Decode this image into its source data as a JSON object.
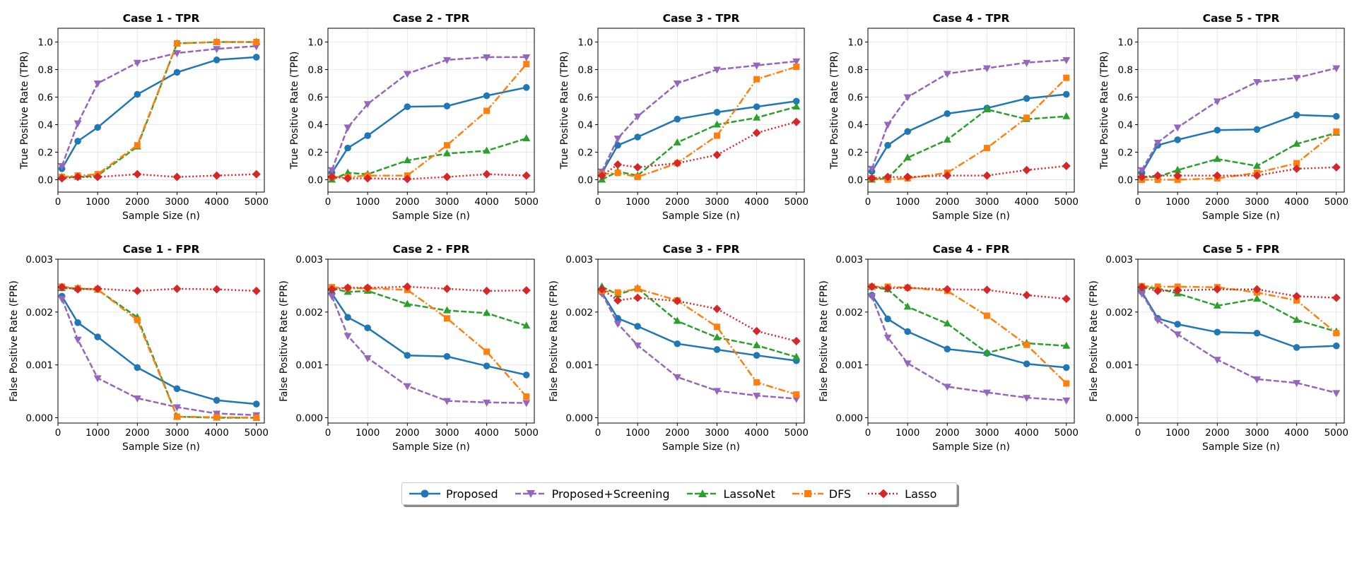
{
  "chart_data": [
    {
      "type": "line",
      "title": "Case 1 - TPR",
      "xlabel": "Sample Size (n)",
      "ylabel": "True Positive Rate (TPR)",
      "x": [
        100,
        500,
        1000,
        2000,
        3000,
        4000,
        5000
      ],
      "ylim": [
        -0.09,
        1.1
      ],
      "yticks": [
        "0.0",
        "0.2",
        "0.4",
        "0.6",
        "0.8",
        "1.0"
      ],
      "xticks": [
        "0",
        "1000",
        "2000",
        "3000",
        "4000",
        "5000"
      ],
      "series": [
        {
          "name": "Proposed",
          "values": [
            0.08,
            0.28,
            0.38,
            0.62,
            0.78,
            0.87,
            0.89
          ]
        },
        {
          "name": "Proposed+Screening",
          "values": [
            0.1,
            0.41,
            0.7,
            0.85,
            0.92,
            0.95,
            0.97
          ]
        },
        {
          "name": "LassoNet",
          "values": [
            0.02,
            0.02,
            0.03,
            0.24,
            0.99,
            1.0,
            1.0
          ]
        },
        {
          "name": "DFS",
          "values": [
            0.02,
            0.03,
            0.04,
            0.25,
            0.99,
            1.0,
            1.0
          ]
        },
        {
          "name": "Lasso",
          "values": [
            0.01,
            0.02,
            0.02,
            0.04,
            0.02,
            0.03,
            0.04
          ]
        }
      ]
    },
    {
      "type": "line",
      "title": "Case 2 - TPR",
      "xlabel": "Sample Size (n)",
      "ylabel": "True Positive Rate (TPR)",
      "x": [
        100,
        500,
        1000,
        2000,
        3000,
        4000,
        5000
      ],
      "ylim": [
        -0.09,
        1.1
      ],
      "yticks": [
        "0.0",
        "0.2",
        "0.4",
        "0.6",
        "0.8",
        "1.0"
      ],
      "xticks": [
        "0",
        "1000",
        "2000",
        "3000",
        "4000",
        "5000"
      ],
      "series": [
        {
          "name": "Proposed",
          "values": [
            0.05,
            0.23,
            0.32,
            0.53,
            0.535,
            0.61,
            0.67
          ]
        },
        {
          "name": "Proposed+Screening",
          "values": [
            0.07,
            0.38,
            0.55,
            0.77,
            0.87,
            0.89,
            0.89
          ]
        },
        {
          "name": "LassoNet",
          "values": [
            0.0,
            0.05,
            0.04,
            0.14,
            0.19,
            0.21,
            0.3
          ]
        },
        {
          "name": "DFS",
          "values": [
            0.02,
            0.02,
            0.03,
            0.03,
            0.25,
            0.5,
            0.84
          ]
        },
        {
          "name": "Lasso",
          "values": [
            0.02,
            0.01,
            0.01,
            0.005,
            0.02,
            0.04,
            0.03
          ]
        }
      ]
    },
    {
      "type": "line",
      "title": "Case 3 - TPR",
      "xlabel": "Sample Size (n)",
      "ylabel": "True Positive Rate (TPR)",
      "x": [
        100,
        500,
        1000,
        2000,
        3000,
        4000,
        5000
      ],
      "ylim": [
        -0.09,
        1.1
      ],
      "yticks": [
        "0.0",
        "0.2",
        "0.4",
        "0.6",
        "0.8",
        "1.0"
      ],
      "xticks": [
        "0",
        "1000",
        "2000",
        "3000",
        "4000",
        "5000"
      ],
      "series": [
        {
          "name": "Proposed",
          "values": [
            0.05,
            0.25,
            0.31,
            0.44,
            0.49,
            0.53,
            0.57
          ]
        },
        {
          "name": "Proposed+Screening",
          "values": [
            0.06,
            0.3,
            0.46,
            0.7,
            0.8,
            0.83,
            0.86
          ]
        },
        {
          "name": "LassoNet",
          "values": [
            0.0,
            0.06,
            0.03,
            0.27,
            0.4,
            0.45,
            0.53
          ]
        },
        {
          "name": "DFS",
          "values": [
            0.04,
            0.05,
            0.02,
            0.12,
            0.32,
            0.73,
            0.82
          ]
        },
        {
          "name": "Lasso",
          "values": [
            0.03,
            0.11,
            0.09,
            0.12,
            0.18,
            0.34,
            0.42
          ]
        }
      ]
    },
    {
      "type": "line",
      "title": "Case 4 - TPR",
      "xlabel": "Sample Size (n)",
      "ylabel": "True Positive Rate (TPR)",
      "x": [
        100,
        500,
        1000,
        2000,
        3000,
        4000,
        5000
      ],
      "ylim": [
        -0.09,
        1.1
      ],
      "yticks": [
        "0.0",
        "0.2",
        "0.4",
        "0.6",
        "0.8",
        "1.0"
      ],
      "xticks": [
        "0",
        "1000",
        "2000",
        "3000",
        "4000",
        "5000"
      ],
      "series": [
        {
          "name": "Proposed",
          "values": [
            0.06,
            0.25,
            0.35,
            0.48,
            0.52,
            0.59,
            0.62
          ]
        },
        {
          "name": "Proposed+Screening",
          "values": [
            0.08,
            0.4,
            0.6,
            0.77,
            0.81,
            0.85,
            0.87
          ]
        },
        {
          "name": "LassoNet",
          "values": [
            0.0,
            0.01,
            0.16,
            0.29,
            0.51,
            0.44,
            0.46
          ]
        },
        {
          "name": "DFS",
          "values": [
            0.01,
            0.0,
            0.01,
            0.05,
            0.23,
            0.45,
            0.74
          ]
        },
        {
          "name": "Lasso",
          "values": [
            0.01,
            0.02,
            0.02,
            0.03,
            0.03,
            0.07,
            0.1
          ]
        }
      ]
    },
    {
      "type": "line",
      "title": "Case 5 - TPR",
      "xlabel": "Sample Size (n)",
      "ylabel": "True Positive Rate (TPR)",
      "x": [
        100,
        500,
        1000,
        2000,
        3000,
        4000,
        5000
      ],
      "ylim": [
        -0.09,
        1.1
      ],
      "yticks": [
        "0.0",
        "0.2",
        "0.4",
        "0.6",
        "0.8",
        "1.0"
      ],
      "xticks": [
        "0",
        "1000",
        "2000",
        "3000",
        "4000",
        "5000"
      ],
      "series": [
        {
          "name": "Proposed",
          "values": [
            0.05,
            0.25,
            0.29,
            0.36,
            0.365,
            0.47,
            0.46
          ]
        },
        {
          "name": "Proposed+Screening",
          "values": [
            0.07,
            0.27,
            0.38,
            0.57,
            0.71,
            0.74,
            0.81
          ]
        },
        {
          "name": "LassoNet",
          "values": [
            0.02,
            0.02,
            0.07,
            0.15,
            0.1,
            0.26,
            0.34
          ]
        },
        {
          "name": "DFS",
          "values": [
            0.0,
            0.0,
            0.0,
            0.01,
            0.05,
            0.12,
            0.35
          ]
        },
        {
          "name": "Lasso",
          "values": [
            0.02,
            0.03,
            0.03,
            0.03,
            0.03,
            0.08,
            0.09
          ]
        }
      ]
    },
    {
      "type": "line",
      "title": "Case 1 - FPR",
      "xlabel": "Sample Size (n)",
      "ylabel": "False Positive Rate (FPR)",
      "x": [
        100,
        500,
        1000,
        2000,
        3000,
        4000,
        5000
      ],
      "ylim": [
        -0.0001,
        0.003
      ],
      "yticks": [
        "0.000",
        "0.001",
        "0.002",
        "0.003"
      ],
      "xticks": [
        "0",
        "1000",
        "2000",
        "3000",
        "4000",
        "5000"
      ],
      "series": [
        {
          "name": "Proposed",
          "values": [
            0.0023,
            0.0018,
            0.00153,
            0.00095,
            0.00055,
            0.00033,
            0.00026
          ]
        },
        {
          "name": "Proposed+Screening",
          "values": [
            0.00225,
            0.00148,
            0.00075,
            0.00037,
            0.0002,
            8e-05,
            5e-05
          ]
        },
        {
          "name": "LassoNet",
          "values": [
            0.00245,
            0.00245,
            0.00242,
            0.0019,
            2e-05,
            0.0,
            0.0
          ]
        },
        {
          "name": "DFS",
          "values": [
            0.00248,
            0.00245,
            0.00243,
            0.00185,
            2e-05,
            1e-05,
            0.0
          ]
        },
        {
          "name": "Lasso",
          "values": [
            0.00247,
            0.00243,
            0.00244,
            0.0024,
            0.00244,
            0.00243,
            0.0024
          ]
        }
      ]
    },
    {
      "type": "line",
      "title": "Case 2 - FPR",
      "xlabel": "Sample Size (n)",
      "ylabel": "False Positive Rate (FPR)",
      "x": [
        100,
        500,
        1000,
        2000,
        3000,
        4000,
        5000
      ],
      "ylim": [
        -0.0001,
        0.003
      ],
      "yticks": [
        "0.000",
        "0.001",
        "0.002",
        "0.003"
      ],
      "xticks": [
        "0",
        "1000",
        "2000",
        "3000",
        "4000",
        "5000"
      ],
      "series": [
        {
          "name": "Proposed",
          "values": [
            0.00235,
            0.0019,
            0.0017,
            0.00118,
            0.00116,
            0.00098,
            0.00081
          ]
        },
        {
          "name": "Proposed+Screening",
          "values": [
            0.0023,
            0.00155,
            0.00113,
            0.0006,
            0.00032,
            0.00029,
            0.00028
          ]
        },
        {
          "name": "LassoNet",
          "values": [
            0.00245,
            0.00238,
            0.0024,
            0.00215,
            0.00203,
            0.00198,
            0.00174
          ]
        },
        {
          "name": "DFS",
          "values": [
            0.00247,
            0.00245,
            0.00245,
            0.00242,
            0.00188,
            0.00125,
            0.0004
          ]
        },
        {
          "name": "Lasso",
          "values": [
            0.00243,
            0.00246,
            0.00246,
            0.00248,
            0.00244,
            0.0024,
            0.00241
          ]
        }
      ]
    },
    {
      "type": "line",
      "title": "Case 3 - FPR",
      "xlabel": "Sample Size (n)",
      "ylabel": "False Positive Rate (FPR)",
      "x": [
        100,
        500,
        1000,
        2000,
        3000,
        4000,
        5000
      ],
      "ylim": [
        -0.0001,
        0.003
      ],
      "yticks": [
        "0.000",
        "0.001",
        "0.002",
        "0.003"
      ],
      "xticks": [
        "0",
        "1000",
        "2000",
        "3000",
        "4000",
        "5000"
      ],
      "series": [
        {
          "name": "Proposed",
          "values": [
            0.00237,
            0.00188,
            0.00173,
            0.0014,
            0.00129,
            0.00118,
            0.00108
          ]
        },
        {
          "name": "Proposed+Screening",
          "values": [
            0.00235,
            0.00178,
            0.00137,
            0.00077,
            0.00051,
            0.00042,
            0.00036
          ]
        },
        {
          "name": "LassoNet",
          "values": [
            0.00248,
            0.00233,
            0.00245,
            0.00183,
            0.00152,
            0.00137,
            0.00115
          ]
        },
        {
          "name": "DFS",
          "values": [
            0.0024,
            0.00237,
            0.00244,
            0.00222,
            0.00172,
            0.00067,
            0.00044
          ]
        },
        {
          "name": "Lasso",
          "values": [
            0.00243,
            0.00222,
            0.00227,
            0.00221,
            0.00206,
            0.00164,
            0.00145
          ]
        }
      ]
    },
    {
      "type": "line",
      "title": "Case 4 - FPR",
      "xlabel": "Sample Size (n)",
      "ylabel": "False Positive Rate (FPR)",
      "x": [
        100,
        500,
        1000,
        2000,
        3000,
        4000,
        5000
      ],
      "ylim": [
        -0.0001,
        0.003
      ],
      "yticks": [
        "0.000",
        "0.001",
        "0.002",
        "0.003"
      ],
      "xticks": [
        "0",
        "1000",
        "2000",
        "3000",
        "4000",
        "5000"
      ],
      "series": [
        {
          "name": "Proposed",
          "values": [
            0.00232,
            0.00187,
            0.00163,
            0.0013,
            0.00122,
            0.00102,
            0.00095
          ]
        },
        {
          "name": "Proposed+Screening",
          "values": [
            0.0023,
            0.00152,
            0.00103,
            0.00059,
            0.00048,
            0.00038,
            0.00033
          ]
        },
        {
          "name": "LassoNet",
          "values": [
            0.00247,
            0.00243,
            0.0021,
            0.00178,
            0.00123,
            0.00141,
            0.00136
          ]
        },
        {
          "name": "DFS",
          "values": [
            0.00248,
            0.00248,
            0.00246,
            0.0024,
            0.00193,
            0.00138,
            0.00065
          ]
        },
        {
          "name": "Lasso",
          "values": [
            0.00248,
            0.00245,
            0.00246,
            0.00243,
            0.00242,
            0.00232,
            0.00225
          ]
        }
      ]
    },
    {
      "type": "line",
      "title": "Case 5 - FPR",
      "xlabel": "Sample Size (n)",
      "ylabel": "False Positive Rate (FPR)",
      "x": [
        100,
        500,
        1000,
        2000,
        3000,
        4000,
        5000
      ],
      "ylim": [
        -0.0001,
        0.003
      ],
      "yticks": [
        "0.000",
        "0.001",
        "0.002",
        "0.003"
      ],
      "xticks": [
        "0",
        "1000",
        "2000",
        "3000",
        "4000",
        "5000"
      ],
      "series": [
        {
          "name": "Proposed",
          "values": [
            0.00238,
            0.00188,
            0.00177,
            0.00162,
            0.0016,
            0.00133,
            0.00136
          ]
        },
        {
          "name": "Proposed+Screening",
          "values": [
            0.00235,
            0.00185,
            0.00158,
            0.0011,
            0.00073,
            0.00066,
            0.00047
          ]
        },
        {
          "name": "LassoNet",
          "values": [
            0.00247,
            0.00245,
            0.00235,
            0.00212,
            0.00225,
            0.00185,
            0.00163
          ]
        },
        {
          "name": "DFS",
          "values": [
            0.00249,
            0.00248,
            0.00248,
            0.00247,
            0.00237,
            0.00222,
            0.0016
          ]
        },
        {
          "name": "Lasso",
          "values": [
            0.00247,
            0.0024,
            0.00241,
            0.00243,
            0.00243,
            0.0023,
            0.00227
          ]
        }
      ]
    }
  ],
  "legend": {
    "items": [
      {
        "name": "Proposed",
        "color": "#1f77b4",
        "dash": "solid",
        "marker": "circle"
      },
      {
        "name": "Proposed+Screening",
        "color": "#9467bd",
        "dash": "dashed",
        "marker": "triangle-down"
      },
      {
        "name": "LassoNet",
        "color": "#2ca02c",
        "dash": "dashed",
        "marker": "triangle-up"
      },
      {
        "name": "DFS",
        "color": "#ff7f0e",
        "dash": "dashdot",
        "marker": "square"
      },
      {
        "name": "Lasso",
        "color": "#d62728",
        "dash": "dotted",
        "marker": "diamond"
      }
    ],
    "placement": "bottom-center"
  }
}
